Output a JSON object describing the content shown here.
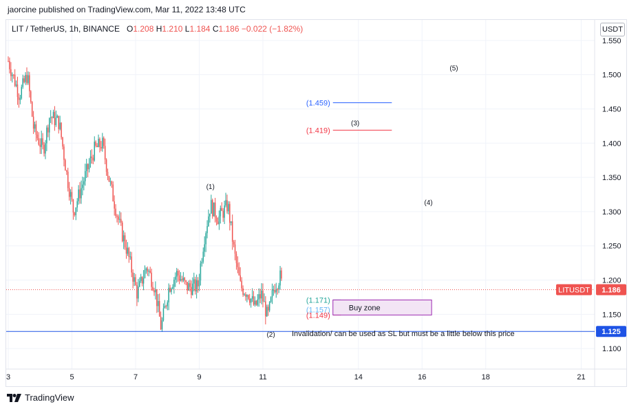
{
  "publisher_line": "jaorcine published on TradingView.com, Mar 11, 2022 13:48 UTC",
  "legend": {
    "symbol": "LIT / TetherUS, 1h, BINANCE",
    "o_label": "O",
    "o": "1.208",
    "h_label": "H",
    "h": "1.210",
    "l_label": "L",
    "l": "1.184",
    "c_label": "C",
    "c": "1.186",
    "change": "−0.022 (−1.82%)"
  },
  "currency_button": "USDT",
  "footer_brand": "TradingView",
  "colors": {
    "up": "#26a69a",
    "down": "#ef5350",
    "blue_line": "#2962ff",
    "red_line": "#f23645",
    "invalidation": "#1e53e5",
    "buy_zone_border": "#9c27b0",
    "buy_zone_fill": "#f3e5f5",
    "grid": "#f0f3fa",
    "axis_text": "#131722"
  },
  "chart_data": {
    "type": "candlestick",
    "x_tick_labels": [
      "3",
      "5",
      "7",
      "9",
      "11",
      "14",
      "16",
      "18",
      "21"
    ],
    "x_tick_days": [
      3,
      5,
      7,
      9,
      11,
      14,
      16,
      18,
      21
    ],
    "y_tick_labels": [
      "1.550",
      "1.500",
      "1.450",
      "1.400",
      "1.350",
      "1.300",
      "1.250",
      "1.200",
      "1.150",
      "1.100"
    ],
    "ylim": [
      1.07,
      1.58
    ],
    "xlim_days": [
      3.0,
      22.0
    ],
    "last_price": {
      "symbol": "LITUSDT",
      "value": "1.186",
      "price": 1.186
    },
    "invalidation_line": {
      "value": "1.125",
      "price": 1.125,
      "label": "Invalidation/ can be used as SL but must be a little below this price"
    },
    "price_path": [
      {
        "day": 3.0,
        "price": 1.52
      },
      {
        "day": 3.35,
        "price": 1.47
      },
      {
        "day": 3.6,
        "price": 1.5
      },
      {
        "day": 3.8,
        "price": 1.42
      },
      {
        "day": 4.1,
        "price": 1.39
      },
      {
        "day": 4.3,
        "price": 1.44
      },
      {
        "day": 4.6,
        "price": 1.43
      },
      {
        "day": 4.85,
        "price": 1.35
      },
      {
        "day": 5.05,
        "price": 1.3
      },
      {
        "day": 5.4,
        "price": 1.35
      },
      {
        "day": 5.7,
        "price": 1.39
      },
      {
        "day": 5.95,
        "price": 1.4
      },
      {
        "day": 6.2,
        "price": 1.34
      },
      {
        "day": 6.5,
        "price": 1.28
      },
      {
        "day": 6.75,
        "price": 1.24
      },
      {
        "day": 7.05,
        "price": 1.18
      },
      {
        "day": 7.35,
        "price": 1.22
      },
      {
        "day": 7.6,
        "price": 1.19
      },
      {
        "day": 7.8,
        "price": 1.13
      },
      {
        "day": 8.05,
        "price": 1.19
      },
      {
        "day": 8.3,
        "price": 1.21
      },
      {
        "day": 8.6,
        "price": 1.19
      },
      {
        "day": 8.95,
        "price": 1.19
      },
      {
        "day": 9.15,
        "price": 1.26
      },
      {
        "day": 9.35,
        "price": 1.31
      },
      {
        "day": 9.6,
        "price": 1.29
      },
      {
        "day": 9.9,
        "price": 1.31
      },
      {
        "day": 10.1,
        "price": 1.24
      },
      {
        "day": 10.3,
        "price": 1.19
      },
      {
        "day": 10.55,
        "price": 1.18
      },
      {
        "day": 10.75,
        "price": 1.16
      },
      {
        "day": 10.95,
        "price": 1.18
      },
      {
        "day": 11.15,
        "price": 1.145
      },
      {
        "day": 11.35,
        "price": 1.19
      },
      {
        "day": 11.55,
        "price": 1.205
      },
      {
        "day": 11.62,
        "price": 1.186
      }
    ],
    "wave_labels": [
      {
        "text": "(1)",
        "day": 9.35,
        "price": 1.337
      },
      {
        "text": "(2)",
        "day": 11.25,
        "price": 1.121
      },
      {
        "text": "(3)",
        "day": 13.9,
        "price": 1.43
      },
      {
        "text": "(4)",
        "day": 16.2,
        "price": 1.314
      },
      {
        "text": "(5)",
        "day": 17.0,
        "price": 1.51
      }
    ],
    "levels": [
      {
        "label": "(1.459)",
        "price": 1.459,
        "color": "#2962ff",
        "from_day": 13.2,
        "to_day": 15.05
      },
      {
        "label": "(1.419)",
        "price": 1.419,
        "color": "#f23645",
        "from_day": 13.2,
        "to_day": 15.05
      },
      {
        "label": "(1.171)",
        "price": 1.171,
        "color": "#26a69a",
        "from_day": 13.2,
        "to_day": 13.45
      },
      {
        "label": "(1.157)",
        "price": 1.157,
        "color": "#64b5f6",
        "from_day": 13.2,
        "to_day": 13.45
      },
      {
        "label": "(1.149)",
        "price": 1.149,
        "color": "#f23645",
        "from_day": 13.2,
        "to_day": 13.45
      }
    ],
    "buy_zone": {
      "label": "Buy zone",
      "from_day": 13.2,
      "to_day": 16.3,
      "top": 1.171,
      "bottom": 1.149
    }
  }
}
